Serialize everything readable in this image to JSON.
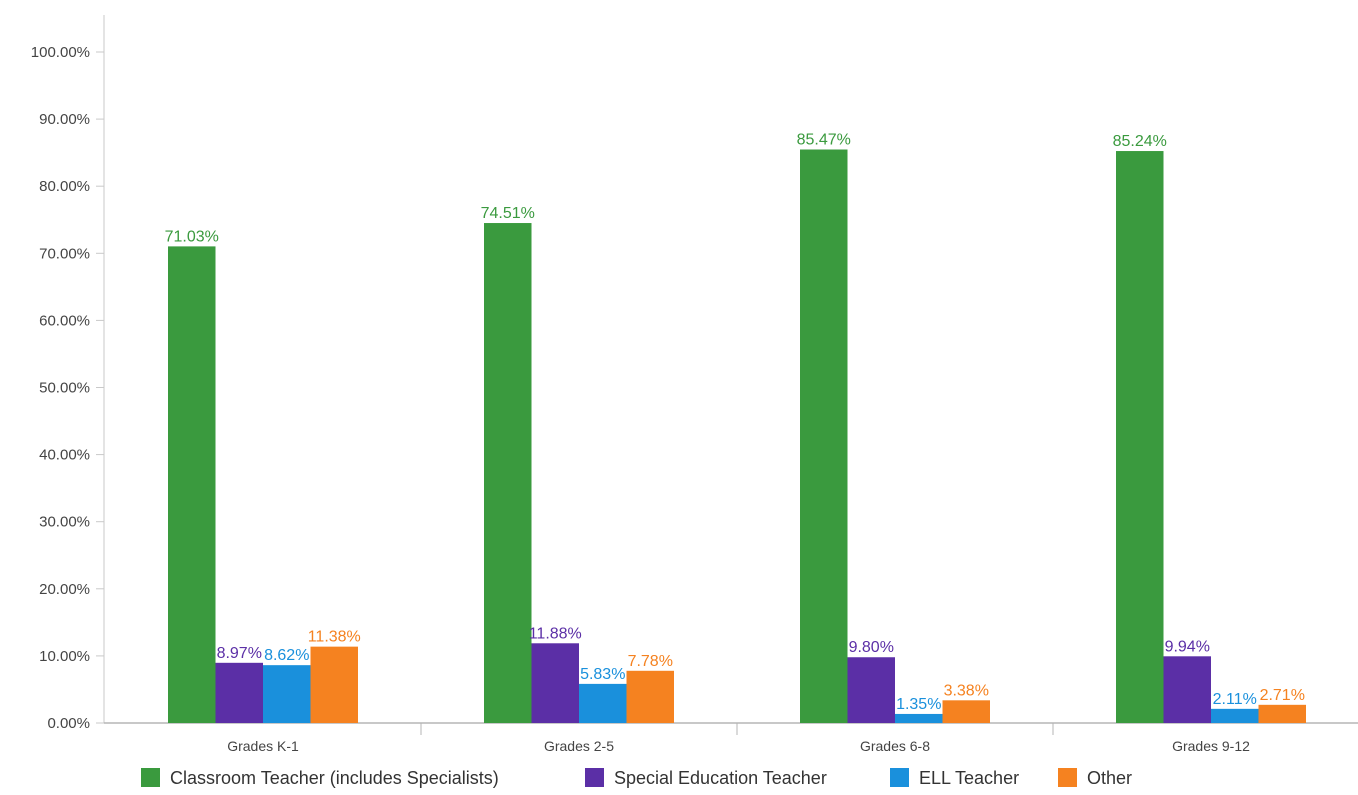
{
  "chart_data": {
    "type": "bar",
    "title": "",
    "xlabel": "",
    "ylabel": "",
    "ylim": [
      0,
      100
    ],
    "yticks": [
      0,
      10,
      20,
      30,
      40,
      50,
      60,
      70,
      80,
      90,
      100
    ],
    "ytick_labels": [
      "0.00%",
      "10.00%",
      "20.00%",
      "30.00%",
      "40.00%",
      "50.00%",
      "60.00%",
      "70.00%",
      "80.00%",
      "90.00%",
      "100.00%"
    ],
    "grid": false,
    "legend_position": "bottom",
    "categories": [
      "Grades K-1",
      "Grades 2-5",
      "Grades 6-8",
      "Grades 9-12"
    ],
    "series": [
      {
        "name": "Classroom Teacher (includes Specialists)",
        "color": "#3a9a3e",
        "values": [
          71.03,
          74.51,
          85.47,
          85.24
        ],
        "labels": [
          "71.03%",
          "74.51%",
          "85.47%",
          "85.24%"
        ]
      },
      {
        "name": "Special Education Teacher",
        "color": "#5b2fa6",
        "values": [
          8.97,
          11.88,
          9.8,
          9.94
        ],
        "labels": [
          "8.97%",
          "11.88%",
          "9.80%",
          "9.94%"
        ]
      },
      {
        "name": "ELL Teacher",
        "color": "#1a90dc",
        "values": [
          8.62,
          5.83,
          1.35,
          2.11
        ],
        "labels": [
          "8.62%",
          "5.83%",
          "1.35%",
          "2.11%"
        ]
      },
      {
        "name": "Other",
        "color": "#f58220",
        "values": [
          11.38,
          7.78,
          3.38,
          2.71
        ],
        "labels": [
          "11.38%",
          "7.78%",
          "3.38%",
          "2.71%"
        ]
      }
    ]
  }
}
